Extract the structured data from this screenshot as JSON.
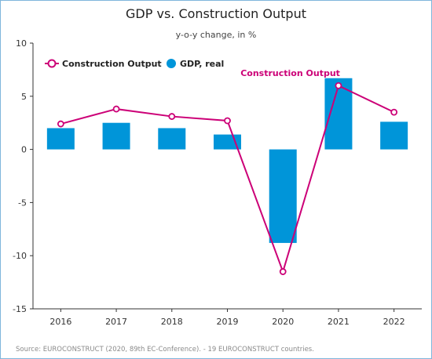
{
  "title": "GDP vs. Construction Output",
  "subtitle": "y-o-y change, in %",
  "source": "Source: EUROCONSTRUCT (2020, 89th EC-Conference). - 19 EUROCONSTRUCT countries.",
  "colors": {
    "gdp": "#0095d9",
    "construction": "#cc0077",
    "axis": "#333333",
    "plot_bg": "#ffffff",
    "frame": "#7fb6dc"
  },
  "chart_data": {
    "type": "bar",
    "categories": [
      "2016",
      "2017",
      "2018",
      "2019",
      "2020",
      "2021",
      "2022"
    ],
    "ylim": [
      -15,
      10
    ],
    "yticks": [
      -15,
      -10,
      -5,
      0,
      5,
      10
    ],
    "legend_position": "top-left",
    "grid": false,
    "series": [
      {
        "name": "Construction Output",
        "type": "line",
        "values": [
          2.4,
          3.8,
          3.1,
          2.7,
          -11.5,
          6.0,
          3.5
        ]
      },
      {
        "name": "GDP, real",
        "type": "bar",
        "values": [
          2.0,
          2.5,
          2.0,
          1.4,
          -8.8,
          6.7,
          2.6
        ]
      }
    ],
    "annotations": [
      {
        "text": "Construction Output",
        "category": "2021",
        "y": 6.0
      }
    ]
  }
}
